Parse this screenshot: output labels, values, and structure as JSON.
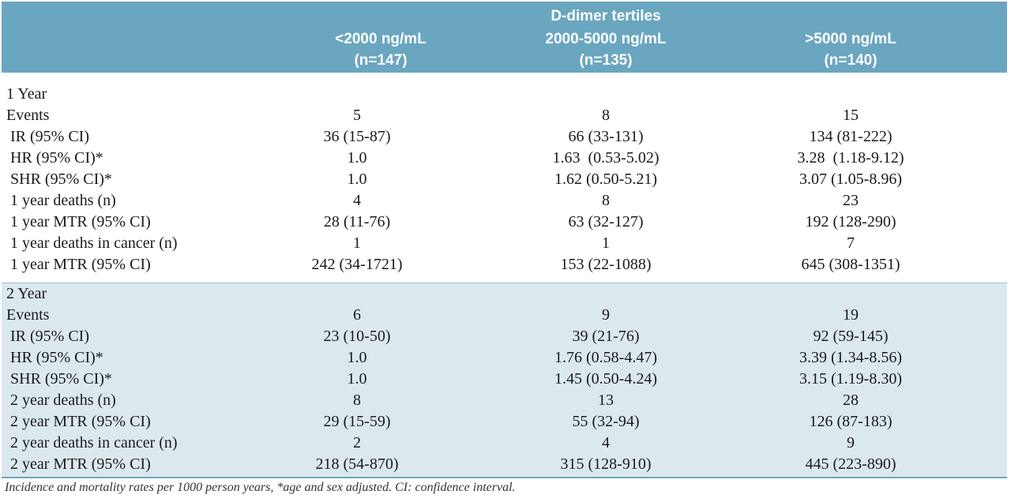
{
  "header": {
    "group_title": "D-dimer tertiles",
    "columns": [
      {
        "range": "<2000 ng/mL",
        "n": "(n=147)"
      },
      {
        "range": "2000-5000 ng/mL",
        "n": "(n=135)"
      },
      {
        "range": ">5000 ng/mL",
        "n": "(n=140)"
      }
    ]
  },
  "sections": [
    {
      "title": "1 Year",
      "rows": [
        {
          "label": "Events",
          "values": [
            "5",
            "8",
            "15"
          ]
        },
        {
          "label": " IR (95% CI)",
          "values": [
            "36 (15-87)",
            "66 (33-131)",
            "134 (81-222)"
          ]
        },
        {
          "label": " HR (95% CI)*",
          "values": [
            "1.0",
            "1.63  (0.53-5.02)",
            "3.28  (1.18-9.12)"
          ]
        },
        {
          "label": " SHR (95% CI)*",
          "values": [
            "1.0",
            "1.62 (0.50-5.21)",
            "3.07 (1.05-8.96)"
          ]
        },
        {
          "label": " 1 year deaths (n)",
          "values": [
            "4",
            "8",
            "23"
          ]
        },
        {
          "label": " 1 year MTR (95% CI)",
          "values": [
            "28 (11-76)",
            "63 (32-127)",
            "192 (128-290)"
          ]
        },
        {
          "label": " 1 year deaths in cancer (n)",
          "values": [
            "1",
            "1",
            "7"
          ]
        },
        {
          "label": " 1 year MTR (95% CI)",
          "values": [
            "242 (34-1721)",
            "153 (22-1088)",
            "645 (308-1351)"
          ]
        }
      ]
    },
    {
      "title": "2 Year",
      "rows": [
        {
          "label": "Events",
          "values": [
            "6",
            "9",
            "19"
          ]
        },
        {
          "label": " IR (95% CI)",
          "values": [
            "23 (10-50)",
            "39 (21-76)",
            "92 (59-145)"
          ]
        },
        {
          "label": " HR (95% CI)*",
          "values": [
            "1.0",
            "1.76 (0.58-4.47)",
            "3.39 (1.34-8.56)"
          ]
        },
        {
          "label": " SHR (95% CI)*",
          "values": [
            "1.0",
            "1.45 (0.50-4.24)",
            "3.15 (1.19-8.30)"
          ]
        },
        {
          "label": " 2 year deaths (n)",
          "values": [
            "8",
            "13",
            "28"
          ]
        },
        {
          "label": " 2 year MTR (95% CI)",
          "values": [
            "29 (15-59)",
            "55 (32-94)",
            "126 (87-183)"
          ]
        },
        {
          "label": " 2 year deaths in cancer (n)",
          "values": [
            "2",
            "4",
            "9"
          ]
        },
        {
          "label": " 2 year MTR (95% CI)",
          "values": [
            "218 (54-870)",
            "315 (128-910)",
            "445 (223-890)"
          ]
        }
      ]
    }
  ],
  "footnote": "Incidence and mortality rates per 1000 person years, *age and sex adjusted. CI: confidence interval.",
  "colors": {
    "header_bg": "#6aa6c0",
    "section2_bg": "#dbe9ef"
  }
}
